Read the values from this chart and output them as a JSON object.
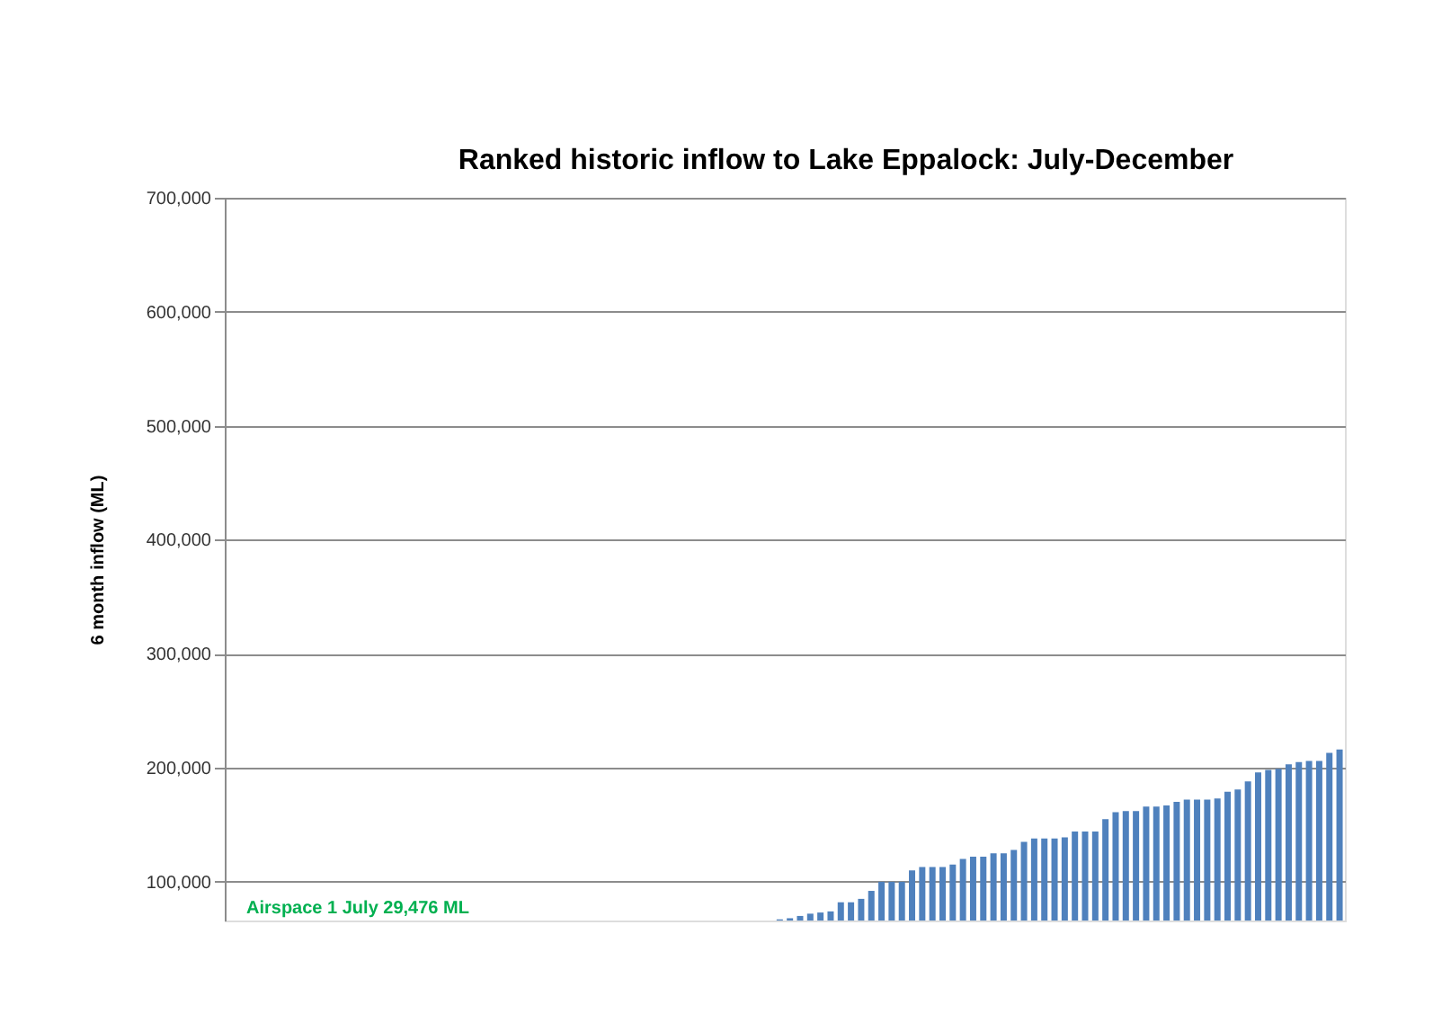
{
  "chart_data": {
    "type": "bar",
    "title": "Ranked historic inflow to Lake Eppalock: July-December",
    "ylabel": "6 month inflow (ML)",
    "categories": [
      null,
      null,
      null,
      null,
      null,
      null,
      null,
      null,
      null,
      null,
      null,
      null,
      null,
      null,
      null,
      null,
      null,
      null,
      null,
      null,
      null,
      null,
      null,
      null,
      null,
      null,
      null,
      null,
      null,
      null,
      null,
      null,
      null,
      null,
      null,
      null,
      null,
      null,
      null,
      null,
      null,
      null,
      null,
      null,
      null,
      null,
      null,
      null,
      null,
      null,
      null,
      null,
      null,
      null,
      null,
      null,
      null,
      null,
      null,
      null,
      null,
      null,
      null,
      null,
      null,
      null,
      null,
      null,
      null,
      null,
      null,
      null,
      null,
      null,
      null,
      null,
      null,
      null,
      null,
      null,
      null,
      null,
      null,
      null,
      null,
      null,
      null,
      null,
      null,
      null,
      null,
      null,
      null,
      null,
      null,
      null,
      null,
      null,
      null,
      null,
      null,
      null,
      null,
      null,
      null,
      null,
      null,
      null,
      null,
      null
    ],
    "values": [
      null,
      null,
      null,
      null,
      null,
      null,
      null,
      null,
      null,
      null,
      null,
      null,
      null,
      null,
      null,
      null,
      null,
      null,
      null,
      null,
      null,
      null,
      null,
      null,
      null,
      null,
      null,
      null,
      null,
      null,
      null,
      null,
      null,
      null,
      null,
      null,
      null,
      null,
      null,
      null,
      null,
      null,
      null,
      null,
      null,
      null,
      null,
      null,
      null,
      null,
      null,
      null,
      null,
      null,
      67000,
      68000,
      70000,
      72000,
      73000,
      74000,
      82000,
      82000,
      85000,
      92000,
      100000,
      100000,
      100000,
      110000,
      113000,
      113000,
      113000,
      115000,
      120000,
      122000,
      122000,
      125000,
      125000,
      128000,
      135000,
      138000,
      138000,
      138000,
      139000,
      144000,
      144000,
      144000,
      155000,
      161000,
      162000,
      162000,
      166000,
      166000,
      167000,
      170000,
      172000,
      172000,
      172000,
      173000,
      179000,
      181000,
      188000,
      196000,
      198000,
      199000,
      203000,
      205000,
      206000,
      206000,
      213000,
      216000
    ],
    "color": "#4f81bd",
    "ylim": [
      66000,
      700000
    ],
    "yticks": [
      {
        "value": 100000,
        "label": "100,000"
      },
      {
        "value": 200000,
        "label": "200,000"
      },
      {
        "value": 300000,
        "label": "300,000"
      },
      {
        "value": 400000,
        "label": "400,000"
      },
      {
        "value": 500000,
        "label": "500,000"
      },
      {
        "value": 600000,
        "label": "600,000"
      },
      {
        "value": 700000,
        "label": "700,000"
      }
    ],
    "grid": "y",
    "tick_labels": "y",
    "annotations": [
      "Airspace 1 July 29,476 ML"
    ]
  }
}
